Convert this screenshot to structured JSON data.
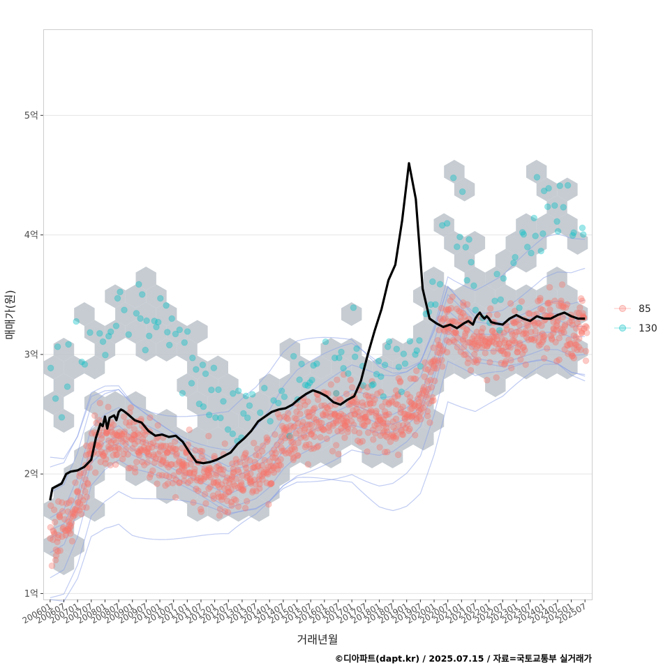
{
  "chart_data": {
    "type": "scatter",
    "title": "",
    "xlabel": "거래년월",
    "ylabel": "매매가(원)",
    "caption": "©디아파트(dapt.kr) / 2025.07.15 / 자료=국토교통부 실거래가",
    "x_tick_labels": [
      "200601",
      "200607",
      "200701",
      "200707",
      "200801",
      "200807",
      "200901",
      "200907",
      "201001",
      "201007",
      "201101",
      "201107",
      "201201",
      "201207",
      "201301",
      "201307",
      "201401",
      "201407",
      "201501",
      "201507",
      "201601",
      "201607",
      "201701",
      "201707",
      "201801",
      "201807",
      "201901",
      "201907",
      "202001",
      "202007",
      "202101",
      "202107",
      "202201",
      "202207",
      "202301",
      "202307",
      "202401",
      "202407",
      "202501",
      "202507"
    ],
    "y_ticks": [
      {
        "value": 1,
        "label": "1억"
      },
      {
        "value": 2,
        "label": "2억"
      },
      {
        "value": 3,
        "label": "3억"
      },
      {
        "value": 4,
        "label": "4억"
      },
      {
        "value": 5,
        "label": "5억"
      }
    ],
    "ylim": [
      0.95,
      5.72
    ],
    "xlim_months": [
      -3,
      237
    ],
    "y_unit": "억",
    "legend": {
      "position": "right",
      "entries": [
        {
          "label": "85",
          "color": "#F8766D"
        },
        {
          "label": "130",
          "color": "#00BFC4"
        }
      ]
    },
    "colors": {
      "series_85": "#F8766D",
      "series_130": "#00BFC4",
      "trend": "#000000",
      "hex": "#BCC3CA",
      "contour": "#8AA0E8",
      "grid": "#E5E5E5",
      "panel_border": "#CCCCCC"
    },
    "series": [
      {
        "name": "85 (center band)",
        "x": [
          0,
          6,
          12,
          18,
          24,
          30,
          36,
          42,
          48,
          54,
          60,
          66,
          72,
          78,
          84,
          90,
          96,
          102,
          108,
          114,
          120,
          126,
          132,
          138,
          144,
          150,
          156,
          162,
          168,
          174,
          180,
          186,
          192,
          198,
          204,
          210,
          216,
          222,
          228,
          234
        ],
        "values": [
          1.5,
          1.55,
          1.8,
          2.2,
          2.3,
          2.35,
          2.25,
          2.2,
          2.15,
          2.1,
          2.05,
          2.0,
          1.95,
          1.9,
          1.95,
          2.0,
          2.1,
          2.25,
          2.35,
          2.4,
          2.45,
          2.5,
          2.55,
          2.5,
          2.45,
          2.45,
          2.5,
          2.6,
          2.9,
          3.3,
          3.2,
          3.1,
          3.1,
          3.1,
          3.15,
          3.2,
          3.25,
          3.25,
          3.2,
          3.2
        ],
        "spread": 0.22,
        "points_per_month": 4
      },
      {
        "name": "130 (center band)",
        "x": [
          0,
          6,
          12,
          18,
          24,
          30,
          36,
          42,
          48,
          54,
          60,
          66,
          72,
          78,
          84,
          90,
          96,
          102,
          108,
          114,
          120,
          126,
          132,
          138,
          144,
          150,
          156,
          162,
          168,
          174,
          180,
          186,
          192,
          198,
          204,
          210,
          216,
          222,
          228,
          234
        ],
        "values": [
          2.6,
          2.9,
          3.1,
          3.2,
          3.2,
          3.2,
          3.3,
          3.3,
          3.2,
          3.1,
          2.9,
          2.8,
          2.6,
          2.5,
          2.5,
          2.6,
          2.6,
          2.7,
          2.75,
          2.8,
          2.9,
          2.95,
          3.0,
          2.95,
          2.9,
          2.9,
          3.0,
          3.1,
          3.5,
          4.4,
          4.0,
          3.5,
          3.4,
          3.6,
          3.8,
          4.0,
          4.2,
          4.3,
          4.3,
          4.1
        ],
        "spread": 0.3,
        "points_per_month": 1
      },
      {
        "name": "trend",
        "x": [
          0,
          1,
          3,
          5,
          7,
          9,
          12,
          15,
          18,
          20,
          22,
          23,
          24,
          25,
          26,
          27,
          28,
          29,
          30,
          31,
          32,
          34,
          37,
          40,
          43,
          46,
          49,
          52,
          55,
          58,
          61,
          64,
          67,
          70,
          73,
          76,
          79,
          82,
          85,
          88,
          91,
          94,
          97,
          100,
          103,
          106,
          109,
          112,
          115,
          118,
          121,
          124,
          127,
          130,
          133,
          136,
          139,
          142,
          145,
          148,
          151,
          154,
          157,
          160,
          163,
          166,
          169,
          172,
          175,
          178,
          181,
          183,
          185,
          186,
          187,
          188,
          189,
          190,
          191,
          192,
          193,
          195,
          198,
          201,
          204,
          207,
          210,
          213,
          216,
          219,
          222,
          225,
          228,
          231,
          234
        ],
        "values": [
          1.78,
          1.88,
          1.9,
          1.92,
          2.0,
          2.02,
          2.03,
          2.06,
          2.12,
          2.3,
          2.42,
          2.4,
          2.48,
          2.38,
          2.47,
          2.48,
          2.49,
          2.45,
          2.52,
          2.54,
          2.53,
          2.5,
          2.45,
          2.43,
          2.36,
          2.32,
          2.33,
          2.31,
          2.32,
          2.27,
          2.18,
          2.1,
          2.09,
          2.1,
          2.12,
          2.15,
          2.18,
          2.25,
          2.3,
          2.36,
          2.44,
          2.48,
          2.52,
          2.54,
          2.55,
          2.58,
          2.63,
          2.67,
          2.7,
          2.68,
          2.65,
          2.6,
          2.58,
          2.62,
          2.65,
          2.78,
          3.0,
          3.2,
          3.38,
          3.62,
          3.75,
          4.12,
          4.6,
          4.3,
          3.55,
          3.3,
          3.26,
          3.23,
          3.25,
          3.22,
          3.26,
          3.28,
          3.25,
          3.3,
          3.33,
          3.35,
          3.32,
          3.3,
          3.32,
          3.3,
          3.27,
          3.26,
          3.25,
          3.3,
          3.33,
          3.3,
          3.28,
          3.32,
          3.3,
          3.3,
          3.33,
          3.35,
          3.32,
          3.3,
          3.3
        ]
      }
    ]
  }
}
